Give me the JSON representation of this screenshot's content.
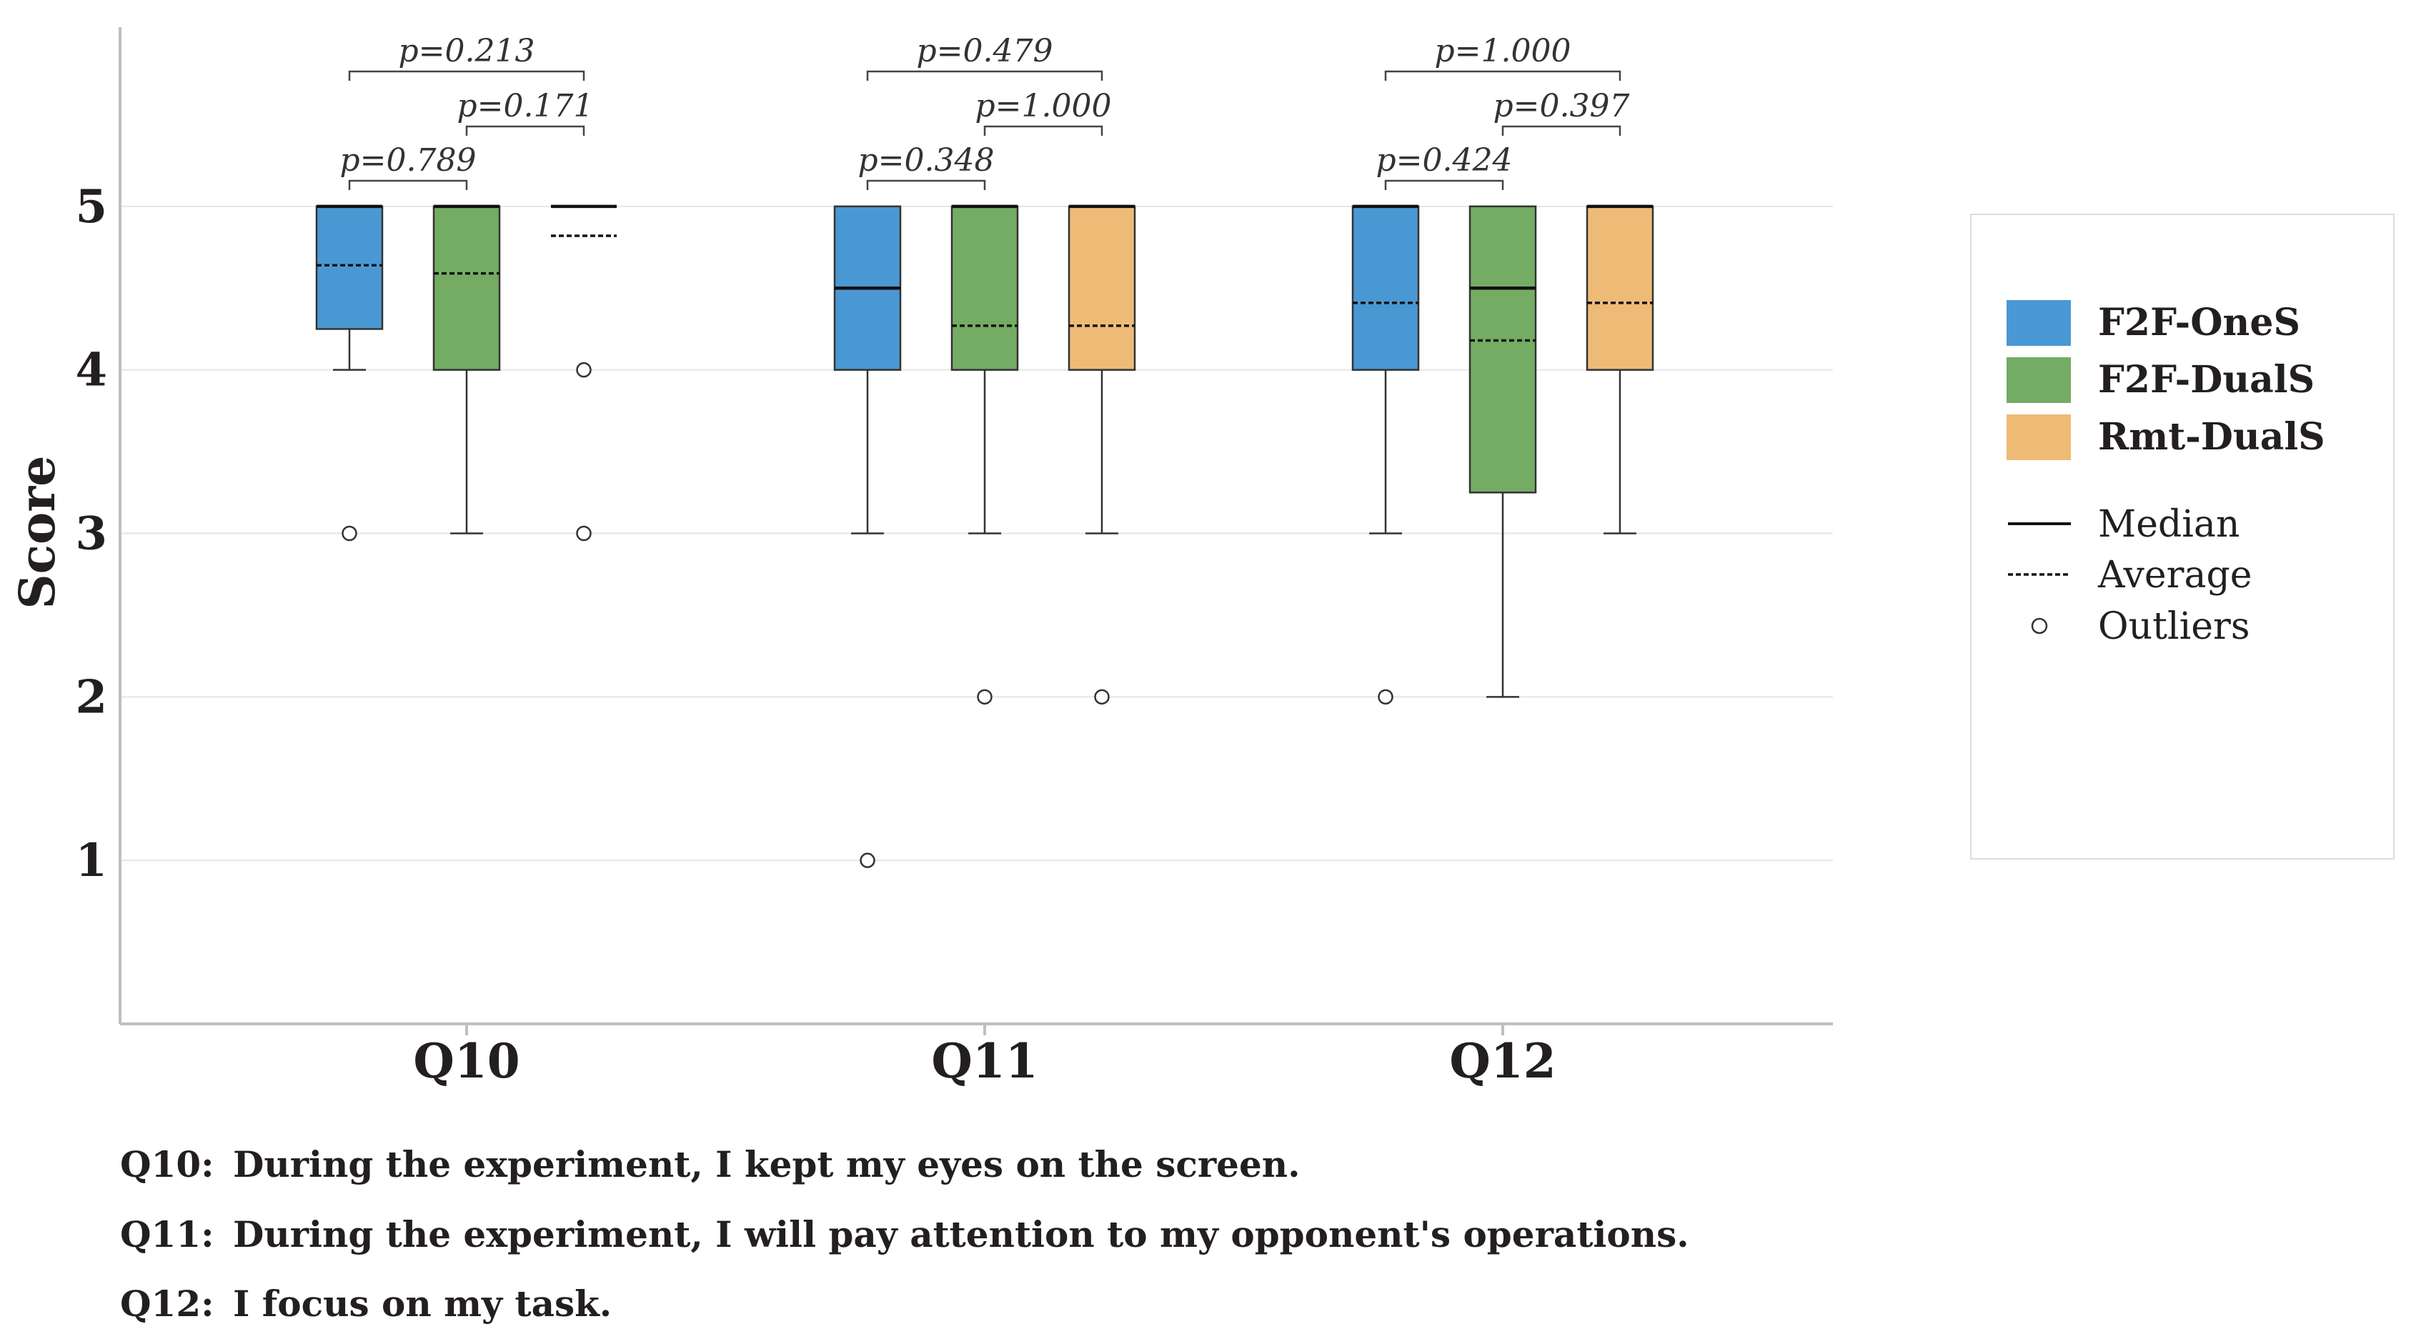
{
  "chart_data": {
    "type": "box",
    "ylabel": "Score",
    "yticks": [
      1,
      2,
      3,
      4,
      5
    ],
    "ylim": [
      0,
      6
    ],
    "grid": true,
    "legend_placement": "right",
    "categories": [
      "Q10",
      "Q11",
      "Q12"
    ],
    "series": [
      {
        "name": "F2F-OneS",
        "color": "#4a98d3"
      },
      {
        "name": "F2F-DualS",
        "color": "#74ac63"
      },
      {
        "name": "Rmt-DualS",
        "color": "#eebb77"
      }
    ],
    "boxes": [
      {
        "category": "Q10",
        "series": "F2F-OneS",
        "q1": 4.25,
        "q3": 5,
        "median": 5,
        "mean": 4.64,
        "whisker_low": 4,
        "whisker_high": 5,
        "outliers": [
          3
        ]
      },
      {
        "category": "Q10",
        "series": "F2F-DualS",
        "q1": 4,
        "q3": 5,
        "median": 5,
        "mean": 4.59,
        "whisker_low": 3,
        "whisker_high": 5,
        "outliers": []
      },
      {
        "category": "Q10",
        "series": "Rmt-DualS",
        "q1": 5,
        "q3": 5,
        "median": 5,
        "mean": 4.82,
        "whisker_low": 5,
        "whisker_high": 5,
        "outliers": [
          4,
          3
        ]
      },
      {
        "category": "Q11",
        "series": "F2F-OneS",
        "q1": 4,
        "q3": 5,
        "median": 4.5,
        "mean": 4.5,
        "whisker_low": 3,
        "whisker_high": 5,
        "outliers": [
          1
        ]
      },
      {
        "category": "Q11",
        "series": "F2F-DualS",
        "q1": 4,
        "q3": 5,
        "median": 5,
        "mean": 4.27,
        "whisker_low": 3,
        "whisker_high": 5,
        "outliers": [
          2
        ]
      },
      {
        "category": "Q11",
        "series": "Rmt-DualS",
        "q1": 4,
        "q3": 5,
        "median": 5,
        "mean": 4.27,
        "whisker_low": 3,
        "whisker_high": 5,
        "outliers": [
          2
        ]
      },
      {
        "category": "Q12",
        "series": "F2F-OneS",
        "q1": 4,
        "q3": 5,
        "median": 5,
        "mean": 4.41,
        "whisker_low": 3,
        "whisker_high": 5,
        "outliers": [
          2
        ]
      },
      {
        "category": "Q12",
        "series": "F2F-DualS",
        "q1": 3.25,
        "q3": 5,
        "median": 4.5,
        "mean": 4.18,
        "whisker_low": 2,
        "whisker_high": 5,
        "outliers": []
      },
      {
        "category": "Q12",
        "series": "Rmt-DualS",
        "q1": 4,
        "q3": 5,
        "median": 5,
        "mean": 4.41,
        "whisker_low": 3,
        "whisker_high": 5,
        "outliers": []
      }
    ],
    "annotations": [
      {
        "category": "Q10",
        "from": 0,
        "to": 2,
        "level": 3,
        "text": "p=0.213"
      },
      {
        "category": "Q10",
        "from": 1,
        "to": 2,
        "level": 2,
        "text": "p=0.171"
      },
      {
        "category": "Q10",
        "from": 0,
        "to": 1,
        "level": 1,
        "text": "p=0.789"
      },
      {
        "category": "Q11",
        "from": 0,
        "to": 2,
        "level": 3,
        "text": "p=0.479"
      },
      {
        "category": "Q11",
        "from": 1,
        "to": 2,
        "level": 2,
        "text": "p=1.000"
      },
      {
        "category": "Q11",
        "from": 0,
        "to": 1,
        "level": 1,
        "text": "p=0.348"
      },
      {
        "category": "Q12",
        "from": 0,
        "to": 2,
        "level": 3,
        "text": "p=1.000"
      },
      {
        "category": "Q12",
        "from": 1,
        "to": 2,
        "level": 2,
        "text": "p=0.397"
      },
      {
        "category": "Q12",
        "from": 0,
        "to": 1,
        "level": 1,
        "text": "p=0.424"
      }
    ],
    "legend_extra": [
      {
        "symbol": "solid-line",
        "label": "Median"
      },
      {
        "symbol": "dashed-line",
        "label": "Average"
      },
      {
        "symbol": "circle",
        "label": "Outliers"
      }
    ]
  },
  "questions": [
    {
      "id": "Q10:",
      "text": "During the experiment, I kept my eyes on the screen."
    },
    {
      "id": "Q11:",
      "text": "During the experiment, I will pay attention to my opponent's operations."
    },
    {
      "id": "Q12:",
      "text": "I focus on my task."
    }
  ]
}
